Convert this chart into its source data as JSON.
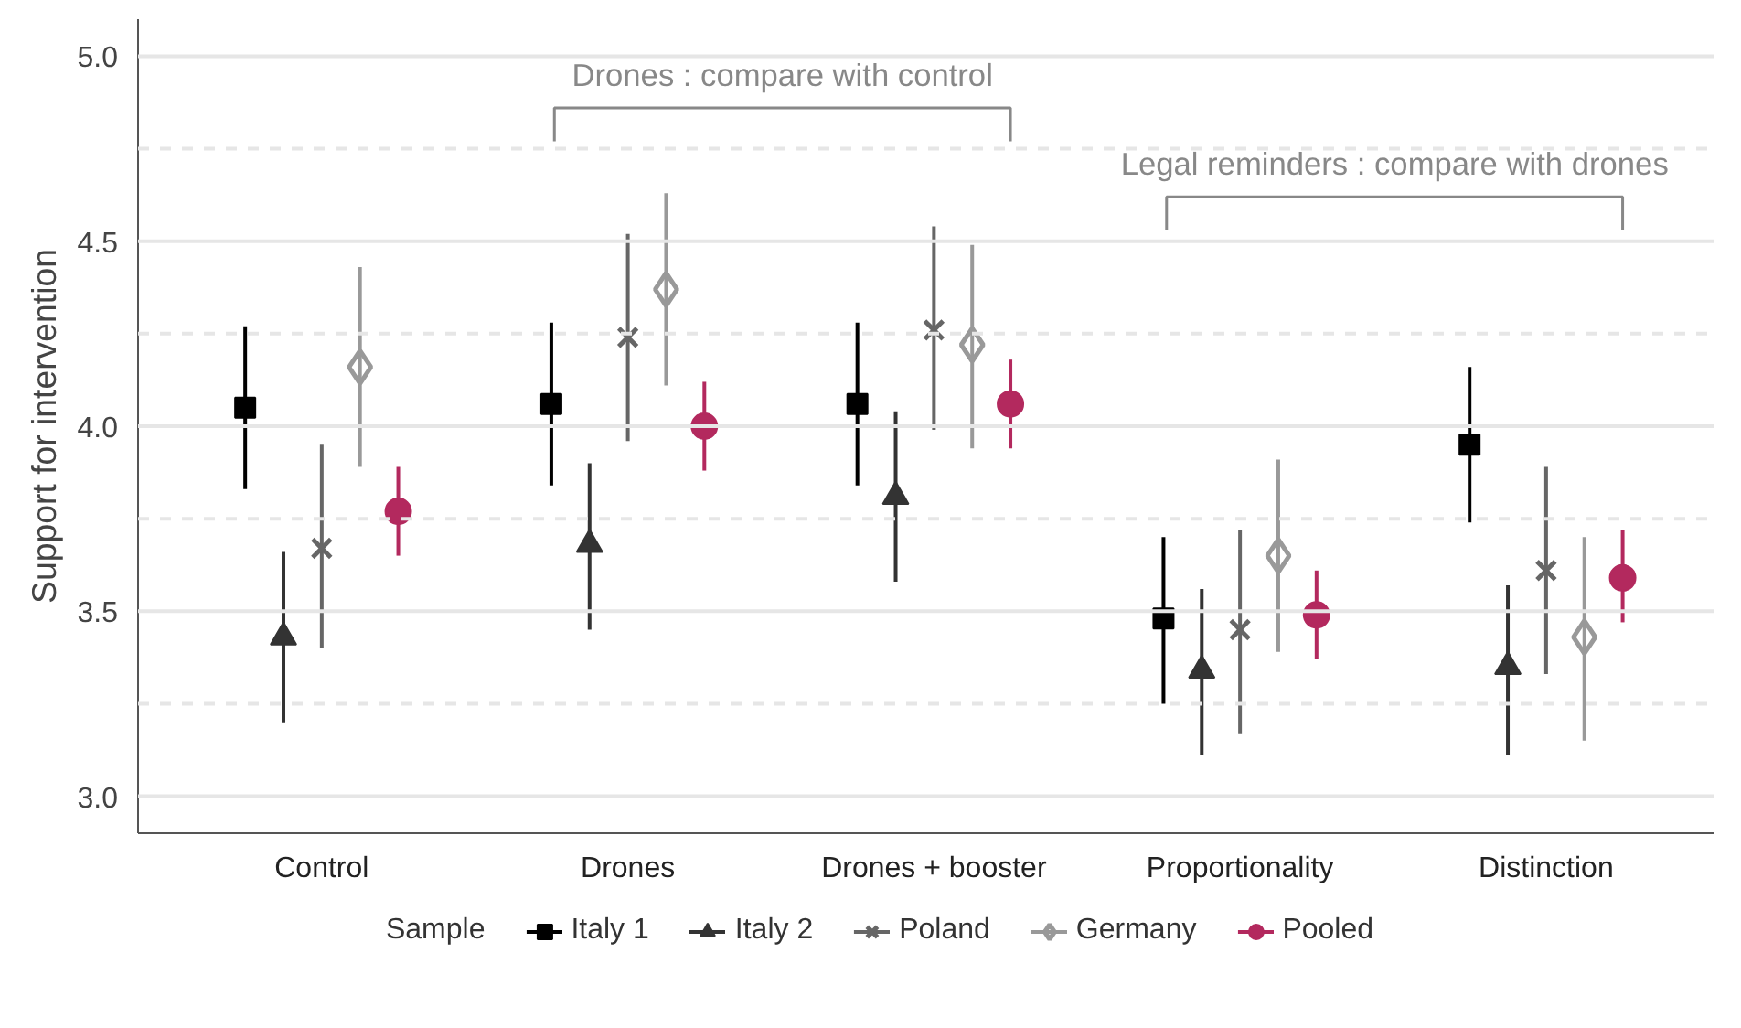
{
  "chart_data": {
    "type": "scatter",
    "ylabel": "Support for intervention",
    "legend_title": "Sample",
    "categories": [
      "Control",
      "Drones",
      "Drones + booster",
      "Proportionality",
      "Distinction"
    ],
    "series": [
      {
        "name": "Italy 1",
        "color": "#000000",
        "marker": "square",
        "values": [
          4.05,
          4.06,
          4.06,
          3.48,
          3.95
        ],
        "errors": [
          [
            3.83,
            4.27
          ],
          [
            3.84,
            4.28
          ],
          [
            3.84,
            4.28
          ],
          [
            3.25,
            3.7
          ],
          [
            3.74,
            4.16
          ]
        ]
      },
      {
        "name": "Italy 2",
        "color": "#333333",
        "marker": "triangle",
        "values": [
          3.43,
          3.68,
          3.81,
          3.34,
          3.35
        ],
        "errors": [
          [
            3.2,
            3.66
          ],
          [
            3.45,
            3.9
          ],
          [
            3.58,
            4.04
          ],
          [
            3.11,
            3.56
          ],
          [
            3.11,
            3.57
          ]
        ]
      },
      {
        "name": "Poland",
        "color": "#666666",
        "marker": "cross",
        "values": [
          3.67,
          4.24,
          4.26,
          3.45,
          3.61
        ],
        "errors": [
          [
            3.4,
            3.95
          ],
          [
            3.96,
            4.52
          ],
          [
            3.99,
            4.54
          ],
          [
            3.17,
            3.72
          ],
          [
            3.33,
            3.89
          ]
        ]
      },
      {
        "name": "Germany",
        "color": "#999999",
        "marker": "diamond",
        "values": [
          4.16,
          4.37,
          4.22,
          3.65,
          3.43
        ],
        "errors": [
          [
            3.89,
            4.43
          ],
          [
            4.11,
            4.63
          ],
          [
            3.94,
            4.49
          ],
          [
            3.39,
            3.91
          ],
          [
            3.15,
            3.7
          ]
        ]
      },
      {
        "name": "Pooled",
        "color": "#b3295e",
        "marker": "circle",
        "values": [
          3.77,
          4.0,
          4.06,
          3.49,
          3.59
        ],
        "errors": [
          [
            3.65,
            3.89
          ],
          [
            3.88,
            4.12
          ],
          [
            3.94,
            4.18
          ],
          [
            3.37,
            3.61
          ],
          [
            3.47,
            3.72
          ]
        ]
      }
    ],
    "ylim": [
      2.9,
      5.1
    ],
    "yticks": [
      {
        "value": 3.0,
        "label": "3.0"
      },
      {
        "value": 3.25,
        "label": null
      },
      {
        "value": 3.5,
        "label": "3.5"
      },
      {
        "value": 3.75,
        "label": null
      },
      {
        "value": 4.0,
        "label": "4.0"
      },
      {
        "value": 4.25,
        "label": null
      },
      {
        "value": 4.5,
        "label": "4.5"
      },
      {
        "value": 4.75,
        "label": null
      },
      {
        "value": 5.0,
        "label": "5.0"
      }
    ],
    "grid": "y",
    "legend": "bottom",
    "annotations": [
      "Drones : compare with control",
      "Legal reminders : compare with drones"
    ]
  }
}
